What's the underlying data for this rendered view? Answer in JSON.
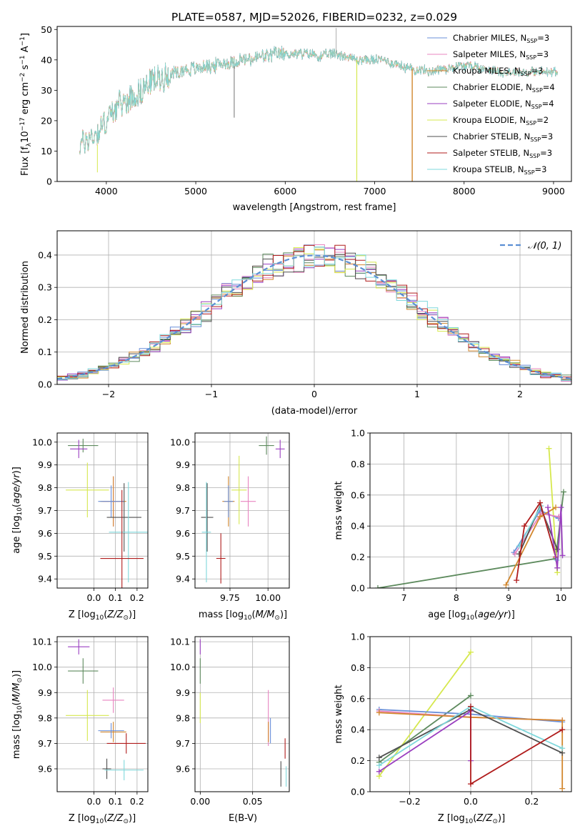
{
  "figure": {
    "title": "PLATE=0587, MJD=52026, FIBERID=0232, z=0.029"
  },
  "colors": {
    "chabrier_miles": "#6a8fd8",
    "salpeter_miles": "#e884c0",
    "kroupa_miles": "#d2872e",
    "chabrier_elodie": "#5d8a5d",
    "salpeter_elodie": "#9a3fc0",
    "kroupa_elodie": "#d6e84e",
    "chabrier_stelib": "#4f4f4f",
    "salpeter_stelib": "#b01c1c",
    "kroupa_stelib": "#7fd8dc",
    "normal_curve": "#5b8fd4"
  },
  "legend": {
    "items": [
      {
        "prefix": "Chabrier MILES, N",
        "sub": "SSP",
        "suffix": "=3"
      },
      {
        "prefix": "Salpeter MILES, N",
        "sub": "SSP",
        "suffix": "=3"
      },
      {
        "prefix": "Kroupa MILES, N",
        "sub": "SSP",
        "suffix": "=3"
      },
      {
        "prefix": "Chabrier ELODIE, N",
        "sub": "SSP",
        "suffix": "=4"
      },
      {
        "prefix": "Salpeter ELODIE, N",
        "sub": "SSP",
        "suffix": "=4"
      },
      {
        "prefix": "Kroupa ELODIE, N",
        "sub": "SSP",
        "suffix": "=2"
      },
      {
        "prefix": "Chabrier STELIB, N",
        "sub": "SSP",
        "suffix": "=3"
      },
      {
        "prefix": "Salpeter STELIB, N",
        "sub": "SSP",
        "suffix": "=3"
      },
      {
        "prefix": "Kroupa STELIB, N",
        "sub": "SSP",
        "suffix": "=3"
      }
    ],
    "normal_label": "𝒩(0, 1)"
  },
  "chart_data": [
    {
      "id": "spectrum",
      "type": "line",
      "xlabel": "wavelength [Angstrom, rest frame]",
      "ylabel": "Flux [f_λ 10^-17 erg cm^-2 s^-1 A^-1]",
      "xlim": [
        3450,
        9200
      ],
      "ylim": [
        0,
        51
      ],
      "xticks": [
        4000,
        5000,
        6000,
        7000,
        8000,
        9000
      ],
      "yticks": [
        0,
        10,
        20,
        30,
        40,
        50
      ],
      "grid": false,
      "legend_position": "top-right",
      "continuum_x": [
        3700,
        3800,
        3900,
        4000,
        4100,
        4200,
        4300,
        4400,
        4500,
        4600,
        4700,
        4800,
        4900,
        5000,
        5100,
        5200,
        5300,
        5400,
        5500,
        5600,
        5700,
        5800,
        5900,
        6000,
        6100,
        6200,
        6300,
        6400,
        6500,
        6600,
        6700,
        6800,
        6900,
        7000,
        7100,
        7200,
        7300,
        7400,
        7500,
        7600,
        7700,
        7800,
        7900,
        8000,
        8100,
        8200,
        8300,
        8400,
        8500,
        8600,
        8700,
        8800,
        8900,
        9000,
        9100
      ],
      "continuum_y": [
        12,
        14,
        16,
        20,
        24,
        26,
        28,
        30,
        33,
        34,
        35,
        36,
        37,
        37,
        38,
        38,
        39,
        39,
        40,
        40,
        41,
        41,
        42,
        42,
        42,
        42,
        42,
        41,
        42,
        42,
        41,
        40,
        40,
        40,
        40,
        39,
        38,
        37,
        37,
        36,
        37,
        37,
        38,
        38,
        38,
        37,
        37,
        36,
        36,
        36,
        36,
        36,
        36,
        36,
        36
      ],
      "features": [
        {
          "x": 5430,
          "y": 21
        },
        {
          "x": 6570,
          "y": 50.5
        },
        {
          "x": 3900,
          "y": 3
        },
        {
          "x": 6800,
          "y": 0
        },
        {
          "x": 7420,
          "y": 0
        }
      ]
    },
    {
      "id": "residuals",
      "type": "histogram",
      "xlabel": "(data-model)/error",
      "ylabel": "Normed distribution",
      "xlim": [
        -2.5,
        2.5
      ],
      "ylim": [
        0,
        0.475
      ],
      "xticks": [
        -2,
        -1,
        0,
        1,
        2
      ],
      "yticks": [
        0,
        0.1,
        0.2,
        0.3,
        0.4
      ],
      "grid": true,
      "legend_position": "top-right",
      "bin_width": 0.1,
      "note": "nine step histograms approximating N(0,1)"
    },
    {
      "id": "age_vs_Z",
      "type": "errorbar",
      "xlabel": "Z [log10(Z/Z⊙)]",
      "ylabel": "age [log10(age/yr)]",
      "xlim": [
        -0.17,
        0.25
      ],
      "ylim": [
        9.36,
        10.04
      ],
      "xticks": [
        0.0,
        0.1,
        0.2
      ],
      "yticks": [
        9.4,
        9.5,
        9.6,
        9.7,
        9.8,
        9.9,
        10.0
      ],
      "grid": true,
      "points": [
        {
          "series": "chabrier_elodie",
          "x": -0.05,
          "y": 9.985,
          "xerr": 0.07,
          "yerr": 0.03
        },
        {
          "series": "salpeter_elodie",
          "x": -0.07,
          "y": 9.97,
          "xerr": 0.04,
          "yerr": 0.04
        },
        {
          "series": "kroupa_elodie",
          "x": -0.03,
          "y": 9.79,
          "xerr": 0.1,
          "yerr": 0.12
        },
        {
          "series": "salpeter_miles",
          "x": 0.09,
          "y": 9.74,
          "xerr": 0.05,
          "yerr": 0.11
        },
        {
          "series": "kroupa_miles",
          "x": 0.09,
          "y": 9.74,
          "xerr": 0.06,
          "yerr": 0.11
        },
        {
          "series": "chabrier_miles",
          "x": 0.08,
          "y": 9.74,
          "xerr": 0.06,
          "yerr": 0.07
        },
        {
          "series": "chabrier_stelib",
          "x": 0.14,
          "y": 9.67,
          "xerr": 0.08,
          "yerr": 0.15
        },
        {
          "series": "kroupa_stelib",
          "x": 0.16,
          "y": 9.605,
          "xerr": 0.09,
          "yerr": 0.22
        },
        {
          "series": "salpeter_stelib",
          "x": 0.13,
          "y": 9.49,
          "xerr": 0.1,
          "yerr": 0.3
        }
      ]
    },
    {
      "id": "age_vs_mass",
      "type": "errorbar",
      "xlabel": "mass [log10(M/M⊙)]",
      "ylabel": "",
      "xlim": [
        9.52,
        10.14
      ],
      "ylim": [
        9.36,
        10.04
      ],
      "xticks": [
        9.75,
        10.0
      ],
      "yticks": [
        9.4,
        9.5,
        9.6,
        9.7,
        9.8,
        9.9,
        10.0
      ],
      "grid": true,
      "points": [
        {
          "series": "chabrier_elodie",
          "x": 9.99,
          "y": 9.985,
          "xerr": 0.05,
          "yerr": 0.04
        },
        {
          "series": "salpeter_elodie",
          "x": 10.08,
          "y": 9.97,
          "xerr": 0.03,
          "yerr": 0.04
        },
        {
          "series": "kroupa_elodie",
          "x": 9.81,
          "y": 9.79,
          "xerr": 0.05,
          "yerr": 0.15
        },
        {
          "series": "salpeter_miles",
          "x": 9.87,
          "y": 9.74,
          "xerr": 0.05,
          "yerr": 0.11
        },
        {
          "series": "kroupa_miles",
          "x": 9.74,
          "y": 9.74,
          "xerr": 0.04,
          "yerr": 0.11
        },
        {
          "series": "chabrier_miles",
          "x": 9.74,
          "y": 9.74,
          "xerr": 0.03,
          "yerr": 0.07
        },
        {
          "series": "chabrier_stelib",
          "x": 9.6,
          "y": 9.67,
          "xerr": 0.04,
          "yerr": 0.15
        },
        {
          "series": "kroupa_stelib",
          "x": 9.595,
          "y": 9.605,
          "xerr": 0.03,
          "yerr": 0.22
        },
        {
          "series": "salpeter_stelib",
          "x": 9.69,
          "y": 9.49,
          "xerr": 0.03,
          "yerr": 0.11
        }
      ]
    },
    {
      "id": "weight_vs_age",
      "type": "line",
      "xlabel": "age [log10(age/yr)]",
      "ylabel": "mass weight",
      "xlim": [
        6.35,
        10.2
      ],
      "ylim": [
        0,
        1.0
      ],
      "xticks": [
        7,
        8,
        9,
        10
      ],
      "yticks": [
        0.0,
        0.2,
        0.4,
        0.6,
        0.8,
        1.0
      ],
      "grid": true,
      "series": [
        {
          "key": "chabrier_elodie",
          "x": [
            6.5,
            9.9,
            10.05
          ],
          "y": [
            0.0,
            0.19,
            0.62
          ]
        },
        {
          "key": "kroupa_elodie",
          "x": [
            9.77,
            9.93
          ],
          "y": [
            0.9,
            0.1
          ]
        },
        {
          "key": "chabrier_miles",
          "x": [
            9.1,
            9.6,
            9.95
          ],
          "y": [
            0.23,
            0.5,
            0.45
          ]
        },
        {
          "key": "salpeter_miles",
          "x": [
            9.12,
            9.62,
            9.96
          ],
          "y": [
            0.22,
            0.48,
            0.46
          ]
        },
        {
          "key": "kroupa_miles",
          "x": [
            8.95,
            9.6,
            9.9
          ],
          "y": [
            0.02,
            0.46,
            0.52
          ]
        },
        {
          "key": "chabrier_stelib",
          "x": [
            9.2,
            9.6,
            9.93
          ],
          "y": [
            0.22,
            0.53,
            0.25
          ]
        },
        {
          "key": "kroupa_stelib",
          "x": [
            9.2,
            9.62,
            9.92
          ],
          "y": [
            0.27,
            0.53,
            0.18
          ]
        },
        {
          "key": "salpeter_stelib",
          "x": [
            9.15,
            9.3,
            9.6,
            9.9
          ],
          "y": [
            0.05,
            0.4,
            0.55,
            0.2
          ]
        },
        {
          "key": "salpeter_elodie",
          "x": [
            9.75,
            9.93,
            10.0,
            10.03
          ],
          "y": [
            0.52,
            0.13,
            0.52,
            0.21
          ]
        }
      ]
    },
    {
      "id": "mass_vs_Z",
      "type": "errorbar",
      "xlabel": "Z [log10(Z/Z⊙)]",
      "ylabel": "mass [log10(M/M⊙)]",
      "xlim": [
        -0.17,
        0.25
      ],
      "ylim": [
        9.51,
        10.12
      ],
      "xticks": [
        0.0,
        0.1,
        0.2
      ],
      "yticks": [
        9.6,
        9.7,
        9.8,
        9.9,
        10.0,
        10.1
      ],
      "grid": true,
      "points": [
        {
          "series": "salpeter_elodie",
          "x": -0.07,
          "y": 10.08,
          "xerr": 0.05,
          "yerr": 0.03
        },
        {
          "series": "chabrier_elodie",
          "x": -0.05,
          "y": 9.985,
          "xerr": 0.07,
          "yerr": 0.05
        },
        {
          "series": "salpeter_miles",
          "x": 0.09,
          "y": 9.87,
          "xerr": 0.05,
          "yerr": 0.05
        },
        {
          "series": "kroupa_elodie",
          "x": -0.03,
          "y": 9.81,
          "xerr": 0.1,
          "yerr": 0.1
        },
        {
          "series": "kroupa_miles",
          "x": 0.09,
          "y": 9.745,
          "xerr": 0.06,
          "yerr": 0.04
        },
        {
          "series": "chabrier_miles",
          "x": 0.08,
          "y": 9.75,
          "xerr": 0.06,
          "yerr": 0.03
        },
        {
          "series": "salpeter_stelib",
          "x": 0.15,
          "y": 9.7,
          "xerr": 0.09,
          "yerr": 0.04
        },
        {
          "series": "chabrier_stelib",
          "x": 0.06,
          "y": 9.6,
          "xerr": 0.02,
          "yerr": 0.04
        },
        {
          "series": "kroupa_stelib",
          "x": 0.14,
          "y": 9.595,
          "xerr": 0.09,
          "yerr": 0.04
        }
      ]
    },
    {
      "id": "mass_vs_ebv",
      "type": "errorbar",
      "xlabel": "E(B-V)",
      "ylabel": "",
      "xlim": [
        -0.005,
        0.085
      ],
      "ylim": [
        9.51,
        10.12
      ],
      "xticks": [
        0.0,
        0.05
      ],
      "yticks": [
        9.6,
        9.7,
        9.8,
        9.9,
        10.0,
        10.1
      ],
      "grid": true,
      "points": [
        {
          "series": "salpeter_elodie",
          "x": 0.0,
          "y": 10.08,
          "xerr": 0.0,
          "yerr": 0.03
        },
        {
          "series": "chabrier_elodie",
          "x": 0.0,
          "y": 9.985,
          "xerr": 0.0,
          "yerr": 0.05
        },
        {
          "series": "kroupa_elodie",
          "x": 0.0,
          "y": 9.84,
          "xerr": 0.0,
          "yerr": 0.06
        },
        {
          "series": "salpeter_miles",
          "x": 0.065,
          "y": 9.8,
          "xerr": 0.0,
          "yerr": 0.11
        },
        {
          "series": "chabrier_miles",
          "x": 0.067,
          "y": 9.75,
          "xerr": 0.0,
          "yerr": 0.05
        },
        {
          "series": "kroupa_miles",
          "x": 0.065,
          "y": 9.745,
          "xerr": 0.0,
          "yerr": 0.04
        },
        {
          "series": "salpeter_stelib",
          "x": 0.081,
          "y": 9.68,
          "xerr": 0.0,
          "yerr": 0.04
        },
        {
          "series": "chabrier_stelib",
          "x": 0.077,
          "y": 9.58,
          "xerr": 0.0,
          "yerr": 0.05
        },
        {
          "series": "kroupa_stelib",
          "x": 0.082,
          "y": 9.57,
          "xerr": 0.0,
          "yerr": 0.04
        }
      ]
    },
    {
      "id": "weight_vs_Z",
      "type": "line",
      "xlabel": "Z [log10(Z/Z⊙)]",
      "ylabel": "mass weight",
      "xlim": [
        -0.33,
        0.33
      ],
      "ylim": [
        0,
        1.0
      ],
      "xticks": [
        -0.2,
        0.0,
        0.2
      ],
      "yticks": [
        0.0,
        0.2,
        0.4,
        0.6,
        0.8,
        1.0
      ],
      "grid": true,
      "series": [
        {
          "key": "kroupa_elodie",
          "x": [
            -0.3,
            0.0
          ],
          "y": [
            0.1,
            0.9
          ]
        },
        {
          "key": "chabrier_elodie",
          "x": [
            -0.3,
            0.0
          ],
          "y": [
            0.19,
            0.62
          ]
        },
        {
          "key": "chabrier_miles",
          "x": [
            -0.3,
            0.0,
            0.3
          ],
          "y": [
            0.53,
            0.5,
            0.45
          ]
        },
        {
          "key": "salpeter_miles",
          "x": [
            -0.3,
            0.0,
            0.3
          ],
          "y": [
            0.52,
            0.48,
            0.46
          ]
        },
        {
          "key": "kroupa_miles",
          "x": [
            -0.3,
            0.0,
            0.3,
            0.3
          ],
          "y": [
            0.51,
            0.48,
            0.46,
            0.02
          ]
        },
        {
          "key": "chabrier_stelib",
          "x": [
            -0.3,
            0.0,
            0.3
          ],
          "y": [
            0.22,
            0.53,
            0.25
          ]
        },
        {
          "key": "kroupa_stelib",
          "x": [
            -0.3,
            0.0,
            0.3
          ],
          "y": [
            0.17,
            0.55,
            0.28
          ]
        },
        {
          "key": "salpeter_elodie",
          "x": [
            -0.3,
            0.0,
            0.0
          ],
          "y": [
            0.13,
            0.52,
            0.2
          ]
        },
        {
          "key": "salpeter_stelib",
          "x": [
            0.0,
            0.0,
            0.3
          ],
          "y": [
            0.55,
            0.05,
            0.4
          ]
        }
      ]
    }
  ]
}
